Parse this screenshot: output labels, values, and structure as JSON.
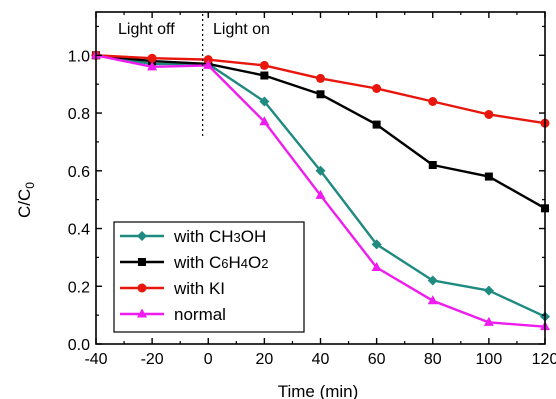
{
  "chart_data": {
    "type": "line",
    "xlabel": "Time (min)",
    "ylabel_main": "C/C",
    "ylabel_sub": "0",
    "xlim": [
      -40,
      120
    ],
    "ylim": [
      0.0,
      1.15
    ],
    "x_ticks": [
      -40,
      -20,
      0,
      20,
      40,
      60,
      80,
      100,
      120
    ],
    "x_tick_labels": [
      "-40",
      "-20",
      "0",
      "20",
      "40",
      "60",
      "80",
      "100",
      "120"
    ],
    "y_ticks": [
      0.0,
      0.2,
      0.4,
      0.6,
      0.8,
      1.0
    ],
    "y_tick_labels": [
      "0.0",
      "0.2",
      "0.4",
      "0.6",
      "0.8",
      "1.0"
    ],
    "grid": false,
    "legend_position": "bottom-left",
    "annotations": {
      "divider_x": -2,
      "light_off": "Light off",
      "light_on": "Light on"
    },
    "series": [
      {
        "name_parts": [
          [
            "with CH",
            ""
          ],
          [
            "3",
            "small"
          ],
          [
            "OH",
            ""
          ]
        ],
        "color": "#1f8a80",
        "marker": "diamond",
        "x": [
          -40,
          -20,
          0,
          20,
          40,
          60,
          80,
          100,
          120
        ],
        "y": [
          1.0,
          0.97,
          0.97,
          0.84,
          0.6,
          0.345,
          0.22,
          0.185,
          0.095
        ]
      },
      {
        "name_parts": [
          [
            "with C",
            ""
          ],
          [
            "6",
            "small"
          ],
          [
            "H",
            ""
          ],
          [
            "4",
            "small"
          ],
          [
            "O",
            ""
          ],
          [
            "2",
            "small"
          ]
        ],
        "color": "#000000",
        "marker": "square",
        "x": [
          -40,
          -20,
          0,
          20,
          40,
          60,
          80,
          100,
          120
        ],
        "y": [
          1.0,
          0.98,
          0.97,
          0.93,
          0.865,
          0.76,
          0.62,
          0.58,
          0.47
        ]
      },
      {
        "name_parts": [
          [
            "with KI",
            ""
          ]
        ],
        "color": "#e8160c",
        "marker": "circle",
        "x": [
          -40,
          -20,
          0,
          20,
          40,
          60,
          80,
          100,
          120
        ],
        "y": [
          1.0,
          0.99,
          0.985,
          0.965,
          0.92,
          0.885,
          0.84,
          0.795,
          0.765
        ]
      },
      {
        "name_parts": [
          [
            "normal",
            ""
          ]
        ],
        "color": "#ee1cee",
        "marker": "triangle",
        "x": [
          -40,
          -20,
          0,
          20,
          40,
          60,
          80,
          100,
          120
        ],
        "y": [
          1.0,
          0.96,
          0.965,
          0.77,
          0.515,
          0.265,
          0.15,
          0.075,
          0.06
        ]
      }
    ]
  }
}
